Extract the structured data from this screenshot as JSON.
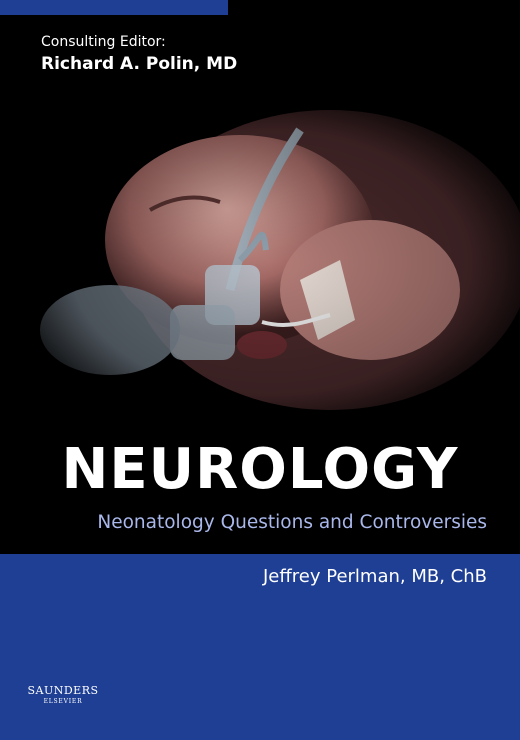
{
  "editor": {
    "label": "Consulting Editor:",
    "name": "Richard A. Polin, MD"
  },
  "title": "NEUROLOGY",
  "subtitle": "Neonatology Questions and Controversies",
  "author": "Jeffrey Perlman, MB, ChB",
  "publisher": {
    "name": "SAUNDERS",
    "parent": "ELSEVIER"
  },
  "colors": {
    "band_blue": "#1e3f94",
    "subtitle": "#a9b7ea",
    "background": "#000000"
  }
}
